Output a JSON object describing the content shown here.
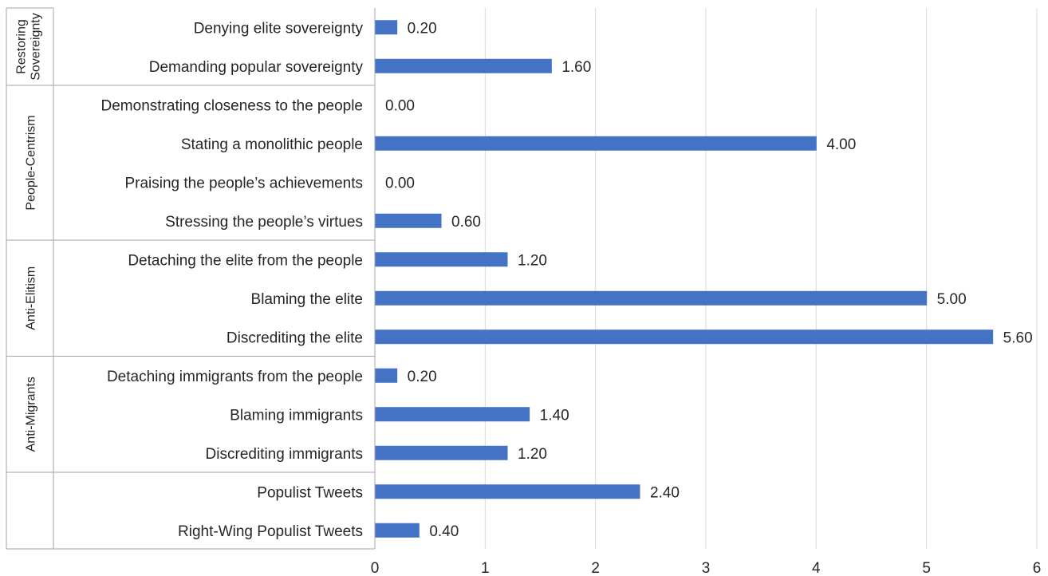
{
  "chart_data": {
    "type": "bar",
    "orientation": "horizontal",
    "grid": true,
    "xlim": [
      0,
      6
    ],
    "xticks": [
      0,
      1,
      2,
      3,
      4,
      5,
      6
    ],
    "bar_color": "#4472C4",
    "value_format": "2 decimals",
    "groups": [
      {
        "label": "Restoring Sovereignty",
        "categories": [
          "Denying elite sovereignty",
          "Demanding popular sovereignty"
        ]
      },
      {
        "label": "People-Centrism",
        "categories": [
          "Demonstrating closeness to the people",
          "Stating a monolithic people",
          "Praising the people’s achievements",
          "Stressing the people’s virtues"
        ]
      },
      {
        "label": "Anti-Elitism",
        "categories": [
          "Detaching the elite from the people",
          "Blaming the elite",
          "Discrediting the elite"
        ]
      },
      {
        "label": "Anti-Migrants",
        "categories": [
          "Detaching immigrants from the people",
          "Blaming immigrants",
          "Discrediting immigrants"
        ]
      },
      {
        "label": "",
        "categories": [
          "Populist Tweets",
          "Right-Wing Populist Tweets"
        ]
      }
    ],
    "categories": [
      "Denying elite sovereignty",
      "Demanding popular sovereignty",
      "Demonstrating closeness to the people",
      "Stating a monolithic people",
      "Praising the people’s achievements",
      "Stressing the people’s virtues",
      "Detaching the elite from the people",
      "Blaming the elite",
      "Discrediting the elite",
      "Detaching immigrants from the people",
      "Blaming immigrants",
      "Discrediting immigrants",
      "Populist Tweets",
      "Right-Wing Populist Tweets"
    ],
    "values": [
      0.2,
      1.6,
      0.0,
      4.0,
      0.0,
      0.6,
      1.2,
      5.0,
      5.6,
      0.2,
      1.4,
      1.2,
      2.4,
      0.4
    ]
  }
}
